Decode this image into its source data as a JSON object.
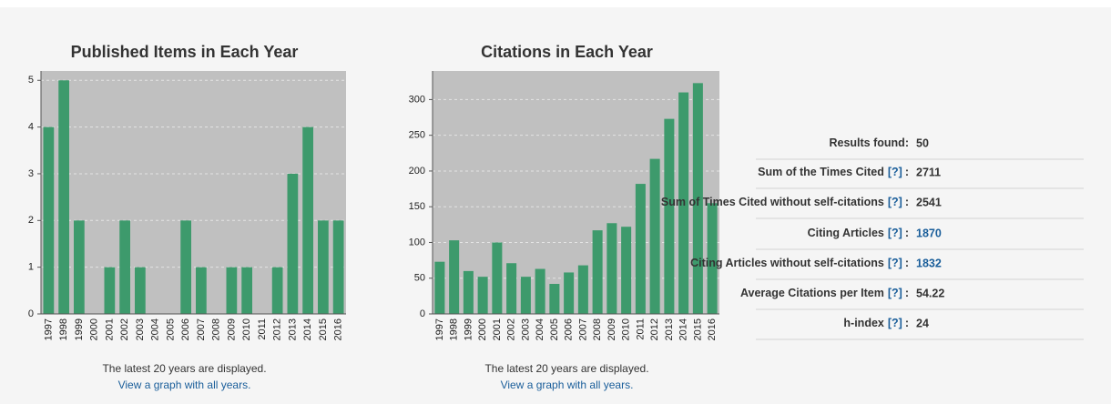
{
  "chart_data": [
    {
      "type": "bar",
      "title": "Published Items in Each Year",
      "categories": [
        "1997",
        "1998",
        "1999",
        "2000",
        "2001",
        "2002",
        "2003",
        "2004",
        "2005",
        "2006",
        "2007",
        "2008",
        "2009",
        "2010",
        "2011",
        "2012",
        "2013",
        "2014",
        "2015",
        "2016"
      ],
      "values": [
        4,
        5,
        2,
        0,
        1,
        2,
        1,
        0,
        0,
        2,
        1,
        0,
        1,
        1,
        0,
        1,
        3,
        4,
        2,
        2
      ],
      "color": "#3d9a6c",
      "ylim": [
        0,
        5.2
      ],
      "yticks": [
        0,
        1,
        2,
        3,
        4,
        5
      ],
      "grid": true,
      "note": "The latest 20 years are displayed.",
      "link": "View a graph with all years."
    },
    {
      "type": "bar",
      "title": "Citations in Each Year",
      "categories": [
        "1997",
        "1998",
        "1999",
        "2000",
        "2001",
        "2002",
        "2003",
        "2004",
        "2005",
        "2006",
        "2007",
        "2008",
        "2009",
        "2010",
        "2011",
        "2012",
        "2013",
        "2014",
        "2015",
        "2016"
      ],
      "values": [
        73,
        103,
        60,
        52,
        100,
        71,
        52,
        63,
        42,
        58,
        68,
        117,
        127,
        122,
        182,
        217,
        273,
        310,
        323,
        155
      ],
      "color": "#3d9a6c",
      "ylim": [
        0,
        340
      ],
      "yticks": [
        0,
        50,
        100,
        150,
        200,
        250,
        300
      ],
      "grid": true,
      "note": "The latest 20 years are displayed.",
      "link": "View a graph with all years."
    }
  ],
  "stats": {
    "separator": ":",
    "rows": [
      {
        "label": "Results found",
        "value": 50
      },
      {
        "label": "Sum of the Times Cited",
        "help": "[?]",
        "value": 2711
      },
      {
        "label": "Sum of Times Cited without self-citations",
        "help": "[?]",
        "value": 2541
      },
      {
        "label": "Citing Articles",
        "help": "[?]",
        "value": 1870,
        "link": true
      },
      {
        "label": "Citing Articles without self-citations",
        "help": "[?]",
        "value": 1832,
        "link": true
      },
      {
        "label": "Average Citations per Item",
        "help": "[?]",
        "value": 54.22
      },
      {
        "label": "h-index",
        "help": "[?]",
        "value": 24
      }
    ]
  }
}
